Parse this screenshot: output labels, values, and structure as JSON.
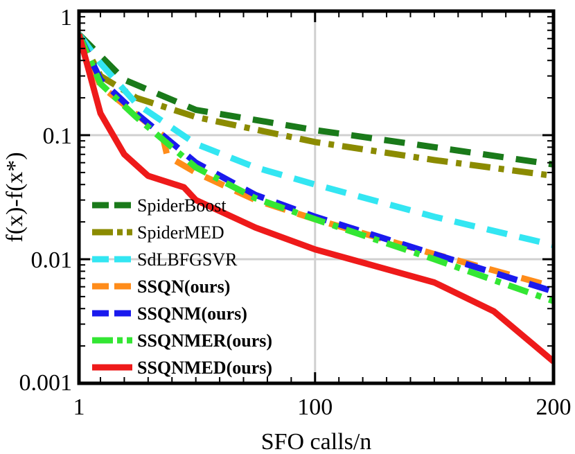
{
  "chart_data": {
    "type": "line",
    "xlabel": "SFO calls/n",
    "ylabel": "f(x)-f(x*)",
    "xlim": [
      1,
      200
    ],
    "ylim": [
      0.001,
      1
    ],
    "y_scale": "log",
    "x_ticks": [
      {
        "value": 1,
        "label": "1"
      },
      {
        "value": 100,
        "label": "100"
      },
      {
        "value": 200,
        "label": "200"
      }
    ],
    "y_ticks": [
      {
        "value": 1,
        "label": "1"
      },
      {
        "value": 0.1,
        "label": "0.1"
      },
      {
        "value": 0.01,
        "label": "0.01"
      },
      {
        "value": 0.001,
        "label": "0.001"
      }
    ],
    "grid": true,
    "legend_position": "bottom-left",
    "series": [
      {
        "name": "SpiderBoost",
        "color": "#1a7a1a",
        "dash": "long-dash",
        "bold": false,
        "x": [
          1,
          20,
          50,
          100,
          150,
          200
        ],
        "y": [
          0.65,
          0.28,
          0.16,
          0.11,
          0.08,
          0.058
        ]
      },
      {
        "name": "SpiderMED",
        "color": "#8b8b00",
        "dash": "dash-dot",
        "bold": false,
        "x": [
          1,
          10,
          25,
          50,
          100,
          150,
          200
        ],
        "y": [
          0.65,
          0.3,
          0.2,
          0.14,
          0.088,
          0.063,
          0.047
        ]
      },
      {
        "name": "SdLBFGSVR",
        "color": "#33e6f2",
        "dash": "long-dash",
        "bold": false,
        "x": [
          1,
          10,
          25,
          50,
          75,
          100,
          150,
          200
        ],
        "y": [
          0.65,
          0.38,
          0.18,
          0.085,
          0.055,
          0.04,
          0.022,
          0.013
        ]
      },
      {
        "name": "SSQN(ours)",
        "color": "#ff8c1a",
        "dash": "long-dash",
        "bold": true,
        "x": [
          1,
          10,
          36,
          38,
          50,
          75,
          100,
          150,
          200
        ],
        "y": [
          0.65,
          0.25,
          0.1,
          0.068,
          0.05,
          0.03,
          0.021,
          0.011,
          0.006
        ]
      },
      {
        "name": "SSQNM(ours)",
        "color": "#1a1aee",
        "dash": "long-dash",
        "bold": true,
        "x": [
          1,
          10,
          25,
          50,
          75,
          100,
          150,
          200
        ],
        "y": [
          0.65,
          0.28,
          0.15,
          0.06,
          0.033,
          0.022,
          0.011,
          0.0055
        ]
      },
      {
        "name": "SSQNMER(ours)",
        "color": "#33e633",
        "dash": "dash-dot",
        "bold": true,
        "x": [
          1,
          10,
          25,
          50,
          75,
          100,
          150,
          200
        ],
        "y": [
          0.65,
          0.26,
          0.14,
          0.055,
          0.031,
          0.021,
          0.01,
          0.0046
        ]
      },
      {
        "name": "SSQNMED(ours)",
        "color": "#ee1a1a",
        "dash": "solid",
        "bold": true,
        "x": [
          1,
          10,
          20,
          30,
          45,
          50,
          75,
          100,
          150,
          175,
          200
        ],
        "y": [
          0.65,
          0.15,
          0.07,
          0.047,
          0.038,
          0.03,
          0.018,
          0.012,
          0.0065,
          0.0038,
          0.0015
        ]
      }
    ]
  }
}
